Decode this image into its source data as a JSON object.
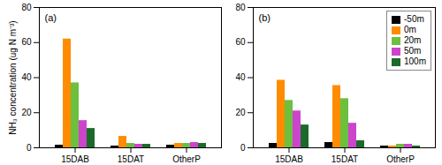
{
  "chart_data": [
    {
      "type": "bar",
      "annotations": [
        "(a)"
      ],
      "ylabel": "NH₃ concentration (ug N m⁻³)",
      "categories": [
        "15DAB",
        "15DAT",
        "OtherP"
      ],
      "series": [
        {
          "name": "-50m",
          "color": "#000000",
          "values": [
            1.5,
            1.0,
            1.5
          ]
        },
        {
          "name": "0m",
          "color": "#FF8C00",
          "values": [
            62.0,
            6.5,
            2.5
          ]
        },
        {
          "name": "20m",
          "color": "#6DBF3E",
          "values": [
            37.0,
            2.5,
            2.5
          ]
        },
        {
          "name": "50m",
          "color": "#CC44CC",
          "values": [
            15.5,
            2.0,
            3.0
          ]
        },
        {
          "name": "100m",
          "color": "#1A6B2A",
          "values": [
            11.0,
            2.0,
            2.5
          ]
        }
      ],
      "ylim": [
        0,
        80
      ],
      "yticks": [
        0,
        20,
        40,
        60,
        80
      ],
      "grid": false
    },
    {
      "type": "bar",
      "annotations": [
        "(b)"
      ],
      "categories": [
        "15DAB",
        "15DAT",
        "OtherP"
      ],
      "series": [
        {
          "name": "-50m",
          "color": "#000000",
          "values": [
            2.5,
            3.0,
            1.0
          ]
        },
        {
          "name": "0m",
          "color": "#FF8C00",
          "values": [
            38.5,
            35.5,
            1.0
          ]
        },
        {
          "name": "20m",
          "color": "#6DBF3E",
          "values": [
            27.0,
            28.0,
            2.0
          ]
        },
        {
          "name": "50m",
          "color": "#CC44CC",
          "values": [
            21.0,
            14.0,
            2.0
          ]
        },
        {
          "name": "100m",
          "color": "#1A6B2A",
          "values": [
            13.0,
            4.0,
            1.0
          ]
        }
      ],
      "ylim": [
        0,
        80
      ],
      "yticks": [
        0,
        20,
        40,
        60,
        80
      ],
      "grid": false,
      "legend": "upper right"
    }
  ]
}
